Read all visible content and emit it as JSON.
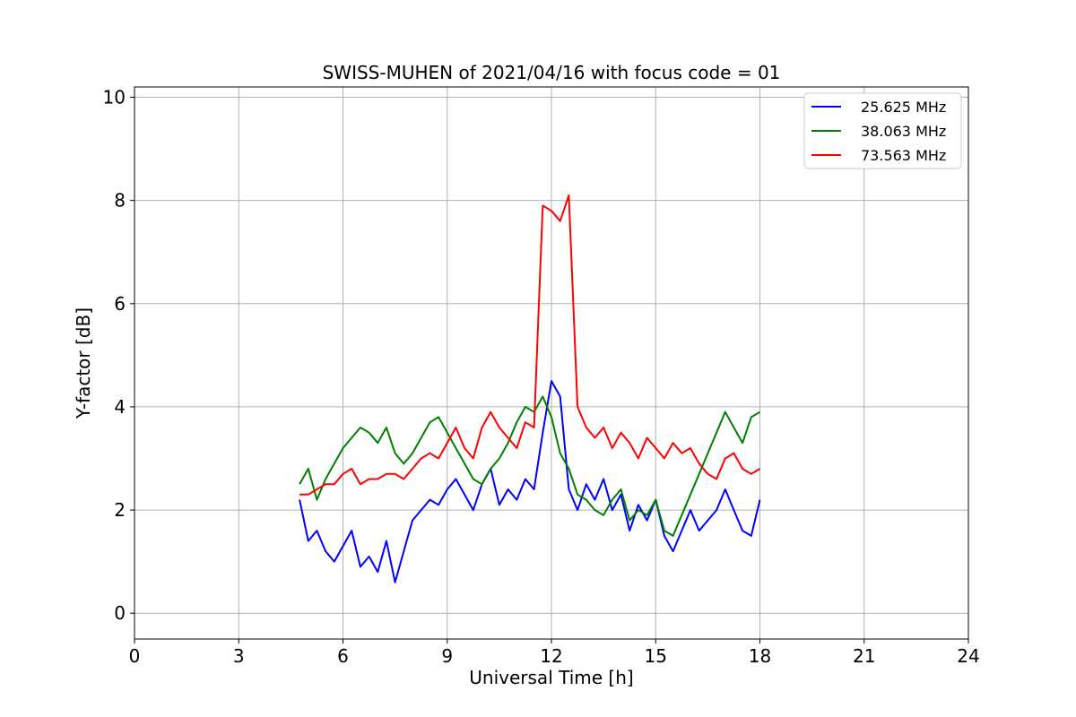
{
  "chart_data": {
    "type": "line",
    "title": "SWISS-MUHEN of 2021/04/16 with focus code = 01",
    "xlabel": "Universal Time [h]",
    "ylabel": "Y-factor [dB]",
    "xlim": [
      0,
      24
    ],
    "ylim": [
      -0.5,
      10.2
    ],
    "x_ticks": [
      0,
      3,
      6,
      9,
      12,
      15,
      18,
      21,
      24
    ],
    "y_ticks": [
      0,
      2,
      4,
      6,
      8,
      10
    ],
    "grid": true,
    "legend_position": "top-right",
    "series": [
      {
        "name": "25.625 MHz",
        "color": "#0000ff",
        "x": [
          4.75,
          5.0,
          5.25,
          5.5,
          5.75,
          6.0,
          6.25,
          6.5,
          6.75,
          7.0,
          7.25,
          7.5,
          7.75,
          8.0,
          8.25,
          8.5,
          8.75,
          9.0,
          9.25,
          9.5,
          9.75,
          10.0,
          10.25,
          10.5,
          10.75,
          11.0,
          11.25,
          11.5,
          11.75,
          12.0,
          12.25,
          12.5,
          12.75,
          13.0,
          13.25,
          13.5,
          13.75,
          14.0,
          14.25,
          14.5,
          14.75,
          15.0,
          15.25,
          15.5,
          15.75,
          16.0,
          16.25,
          16.5,
          16.75,
          17.0,
          17.25,
          17.5,
          17.75,
          18.0
        ],
        "y": [
          2.2,
          1.4,
          1.6,
          1.2,
          1.0,
          1.3,
          1.6,
          0.9,
          1.1,
          0.8,
          1.4,
          0.6,
          1.2,
          1.8,
          2.0,
          2.2,
          2.1,
          2.4,
          2.6,
          2.3,
          2.0,
          2.5,
          2.8,
          2.1,
          2.4,
          2.2,
          2.6,
          2.4,
          3.5,
          4.5,
          4.2,
          2.4,
          2.0,
          2.5,
          2.2,
          2.6,
          2.0,
          2.3,
          1.6,
          2.1,
          1.8,
          2.2,
          1.5,
          1.2,
          1.6,
          2.0,
          1.6,
          1.8,
          2.0,
          2.4,
          2.0,
          1.6,
          1.5,
          2.2
        ]
      },
      {
        "name": "38.063 MHz",
        "color": "#008000",
        "x": [
          4.75,
          5.0,
          5.25,
          5.5,
          5.75,
          6.0,
          6.25,
          6.5,
          6.75,
          7.0,
          7.25,
          7.5,
          7.75,
          8.0,
          8.25,
          8.5,
          8.75,
          9.0,
          9.25,
          9.5,
          9.75,
          10.0,
          10.25,
          10.5,
          10.75,
          11.0,
          11.25,
          11.5,
          11.75,
          12.0,
          12.25,
          12.5,
          12.75,
          13.0,
          13.25,
          13.5,
          13.75,
          14.0,
          14.25,
          14.5,
          14.75,
          15.0,
          15.25,
          15.5,
          15.75,
          16.0,
          16.25,
          16.5,
          16.75,
          17.0,
          17.25,
          17.5,
          17.75,
          18.0
        ],
        "y": [
          2.5,
          2.8,
          2.2,
          2.6,
          2.9,
          3.2,
          3.4,
          3.6,
          3.5,
          3.3,
          3.6,
          3.1,
          2.9,
          3.1,
          3.4,
          3.7,
          3.8,
          3.5,
          3.2,
          2.9,
          2.6,
          2.5,
          2.8,
          3.0,
          3.3,
          3.7,
          4.0,
          3.9,
          4.2,
          3.8,
          3.1,
          2.8,
          2.3,
          2.2,
          2.0,
          1.9,
          2.2,
          2.4,
          1.8,
          2.0,
          1.9,
          2.2,
          1.6,
          1.5,
          1.9,
          2.3,
          2.7,
          3.1,
          3.5,
          3.9,
          3.6,
          3.3,
          3.8,
          3.9
        ]
      },
      {
        "name": "73.563 MHz",
        "color": "#ff0000",
        "x": [
          4.75,
          5.0,
          5.25,
          5.5,
          5.75,
          6.0,
          6.25,
          6.5,
          6.75,
          7.0,
          7.25,
          7.5,
          7.75,
          8.0,
          8.25,
          8.5,
          8.75,
          9.0,
          9.25,
          9.5,
          9.75,
          10.0,
          10.25,
          10.5,
          10.75,
          11.0,
          11.25,
          11.5,
          11.75,
          12.0,
          12.25,
          12.5,
          12.75,
          13.0,
          13.25,
          13.5,
          13.75,
          14.0,
          14.25,
          14.5,
          14.75,
          15.0,
          15.25,
          15.5,
          15.75,
          16.0,
          16.25,
          16.5,
          16.75,
          17.0,
          17.25,
          17.5,
          17.75,
          18.0
        ],
        "y": [
          2.3,
          2.3,
          2.4,
          2.5,
          2.5,
          2.7,
          2.8,
          2.5,
          2.6,
          2.6,
          2.7,
          2.7,
          2.6,
          2.8,
          3.0,
          3.1,
          3.0,
          3.3,
          3.6,
          3.2,
          3.0,
          3.6,
          3.9,
          3.6,
          3.4,
          3.2,
          3.7,
          3.6,
          7.9,
          7.8,
          7.6,
          8.1,
          4.0,
          3.6,
          3.4,
          3.6,
          3.2,
          3.5,
          3.3,
          3.0,
          3.4,
          3.2,
          3.0,
          3.3,
          3.1,
          3.2,
          2.9,
          2.7,
          2.6,
          3.0,
          3.1,
          2.8,
          2.7,
          2.8
        ]
      }
    ]
  }
}
